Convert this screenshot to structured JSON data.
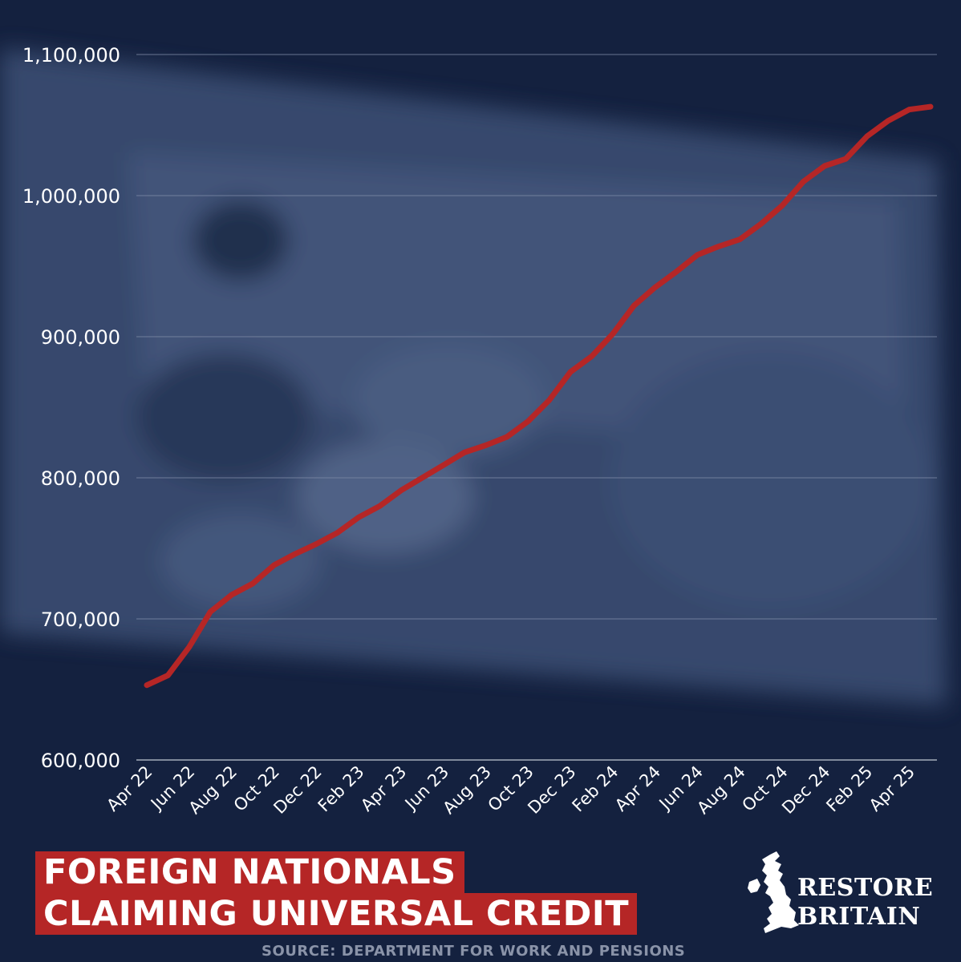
{
  "chart_data": {
    "type": "line",
    "title": "FOREIGN NATIONALS CLAIMING UNIVERSAL CREDIT",
    "title_lines": [
      "FOREIGN NATIONALS",
      "CLAIMING UNIVERSAL CREDIT"
    ],
    "source": "SOURCE: DEPARTMENT FOR WORK AND PENSIONS",
    "ylim": [
      600000,
      1100000
    ],
    "yticks": [
      600000,
      700000,
      800000,
      900000,
      1000000,
      1100000
    ],
    "ytick_labels": [
      "600,000",
      "700,000",
      "800,000",
      "900,000",
      "1,000,000",
      "1,100,000"
    ],
    "x": [
      "Apr 22",
      "May 22",
      "Jun 22",
      "Jul 22",
      "Aug 22",
      "Sep 22",
      "Oct 22",
      "Nov 22",
      "Dec 22",
      "Jan 23",
      "Feb 23",
      "Mar 23",
      "Apr 23",
      "May 23",
      "Jun 23",
      "Jul 23",
      "Aug 23",
      "Sep 23",
      "Oct 23",
      "Nov 23",
      "Dec 23",
      "Jan 24",
      "Feb 24",
      "Mar 24",
      "Apr 24",
      "May 24",
      "Jun 24",
      "Jul 24",
      "Aug 24",
      "Sep 24",
      "Oct 24",
      "Nov 24",
      "Dec 24",
      "Jan 25",
      "Feb 25",
      "Mar 25",
      "Apr 25",
      "May 25"
    ],
    "xtick_labels": [
      "Apr 22",
      "Jun 22",
      "Aug 22",
      "Oct 22",
      "Dec 22",
      "Feb 23",
      "Apr 23",
      "Jun 23",
      "Aug 23",
      "Oct 23",
      "Dec 23",
      "Feb 24",
      "Apr 24",
      "Jun 24",
      "Aug 24",
      "Oct 24",
      "Dec 24",
      "Feb 25",
      "Apr 25"
    ],
    "series": [
      {
        "values": [
          653000,
          660000,
          680000,
          705000,
          717000,
          725000,
          738000,
          746000,
          753000,
          761000,
          772000,
          780000,
          791000,
          800000,
          809000,
          818000,
          823000,
          829000,
          840000,
          855000,
          875000,
          886000,
          902000,
          922000,
          935000,
          946000,
          958000,
          964000,
          969000,
          980000,
          993000,
          1010000,
          1021000,
          1026000,
          1042000,
          1053000,
          1061000,
          1063000
        ]
      }
    ],
    "line_color": "#b52626",
    "grid": "horizontal",
    "legend": "none"
  },
  "brand": {
    "line1": "RESTORE",
    "line2": "BRITAIN",
    "logo_icon": "uk-map-icon"
  }
}
